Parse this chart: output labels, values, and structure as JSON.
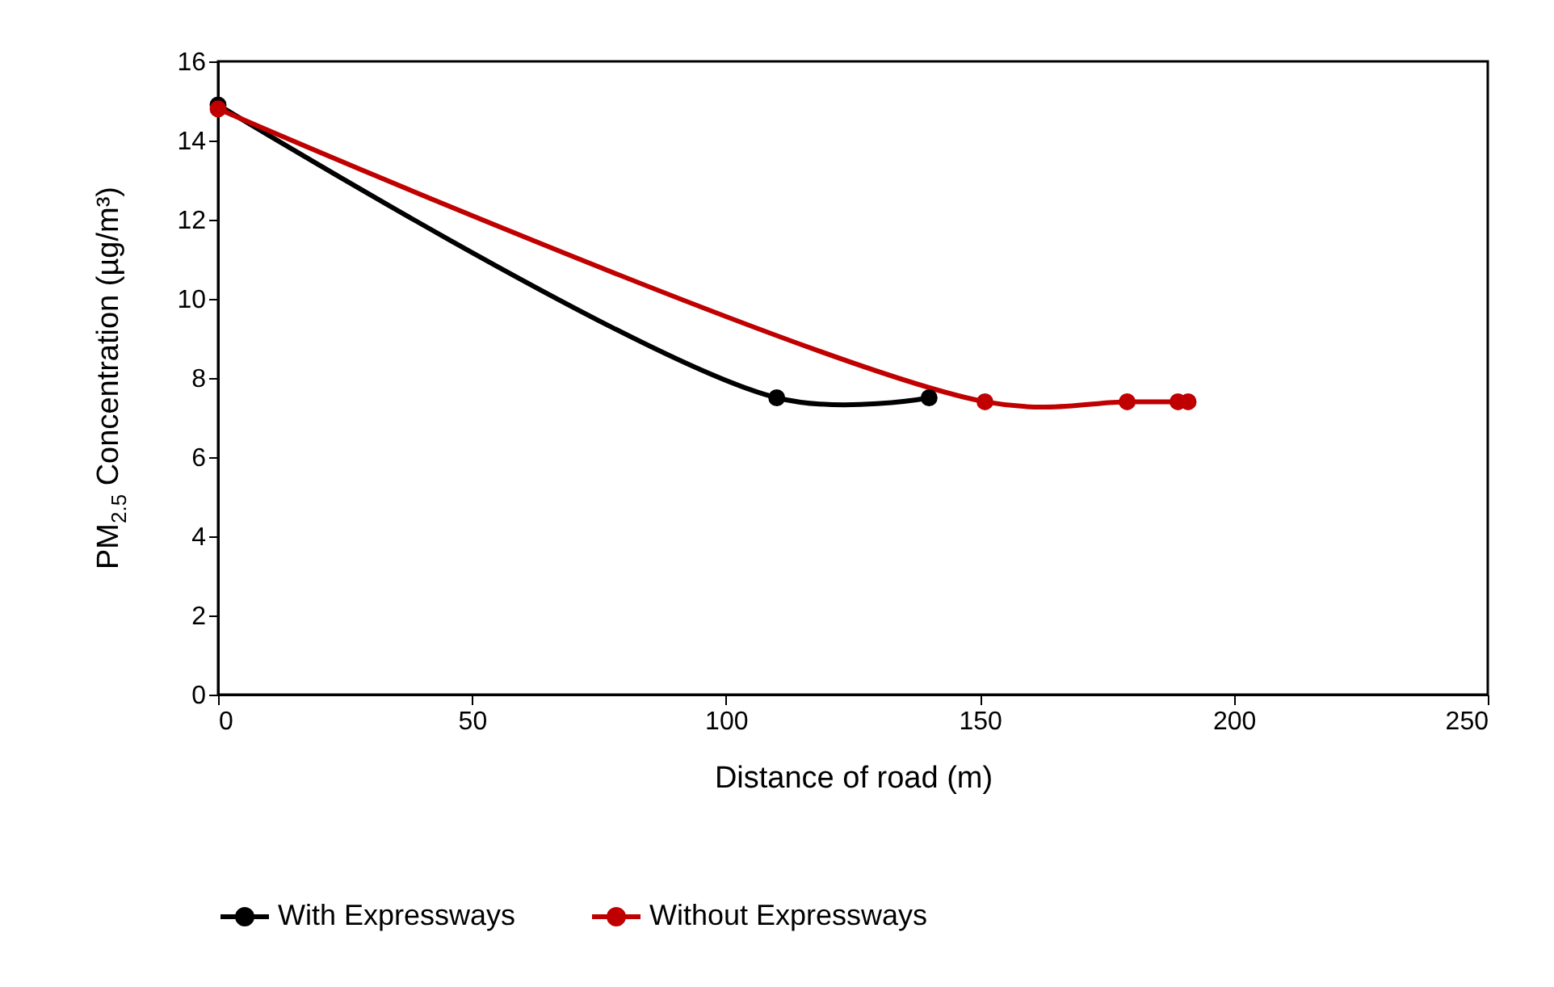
{
  "chart_data": {
    "type": "line",
    "xlabel": "Distance of road (m)",
    "ylabel": "PM$_{2.5}$ Concentration (µg/m³)",
    "xlim": [
      0,
      250
    ],
    "xticks": [
      0,
      50,
      100,
      150,
      200,
      250
    ],
    "ylim": [
      0,
      16
    ],
    "yticks": [
      0,
      2,
      4,
      6,
      8,
      10,
      12,
      14,
      16
    ],
    "grid": false,
    "legend": "bottom",
    "marker": "circle",
    "line_style": "solid",
    "series": [
      {
        "name": "With Expressways",
        "color": "#000000",
        "x": [
          0,
          110,
          140
        ],
        "values": [
          14.9,
          7.5,
          7.5
        ]
      },
      {
        "name": "Without Expressways",
        "color": "#c00000",
        "x": [
          0,
          151,
          179,
          189,
          191
        ],
        "values": [
          14.8,
          7.4,
          7.4,
          7.4,
          7.4
        ]
      }
    ]
  }
}
